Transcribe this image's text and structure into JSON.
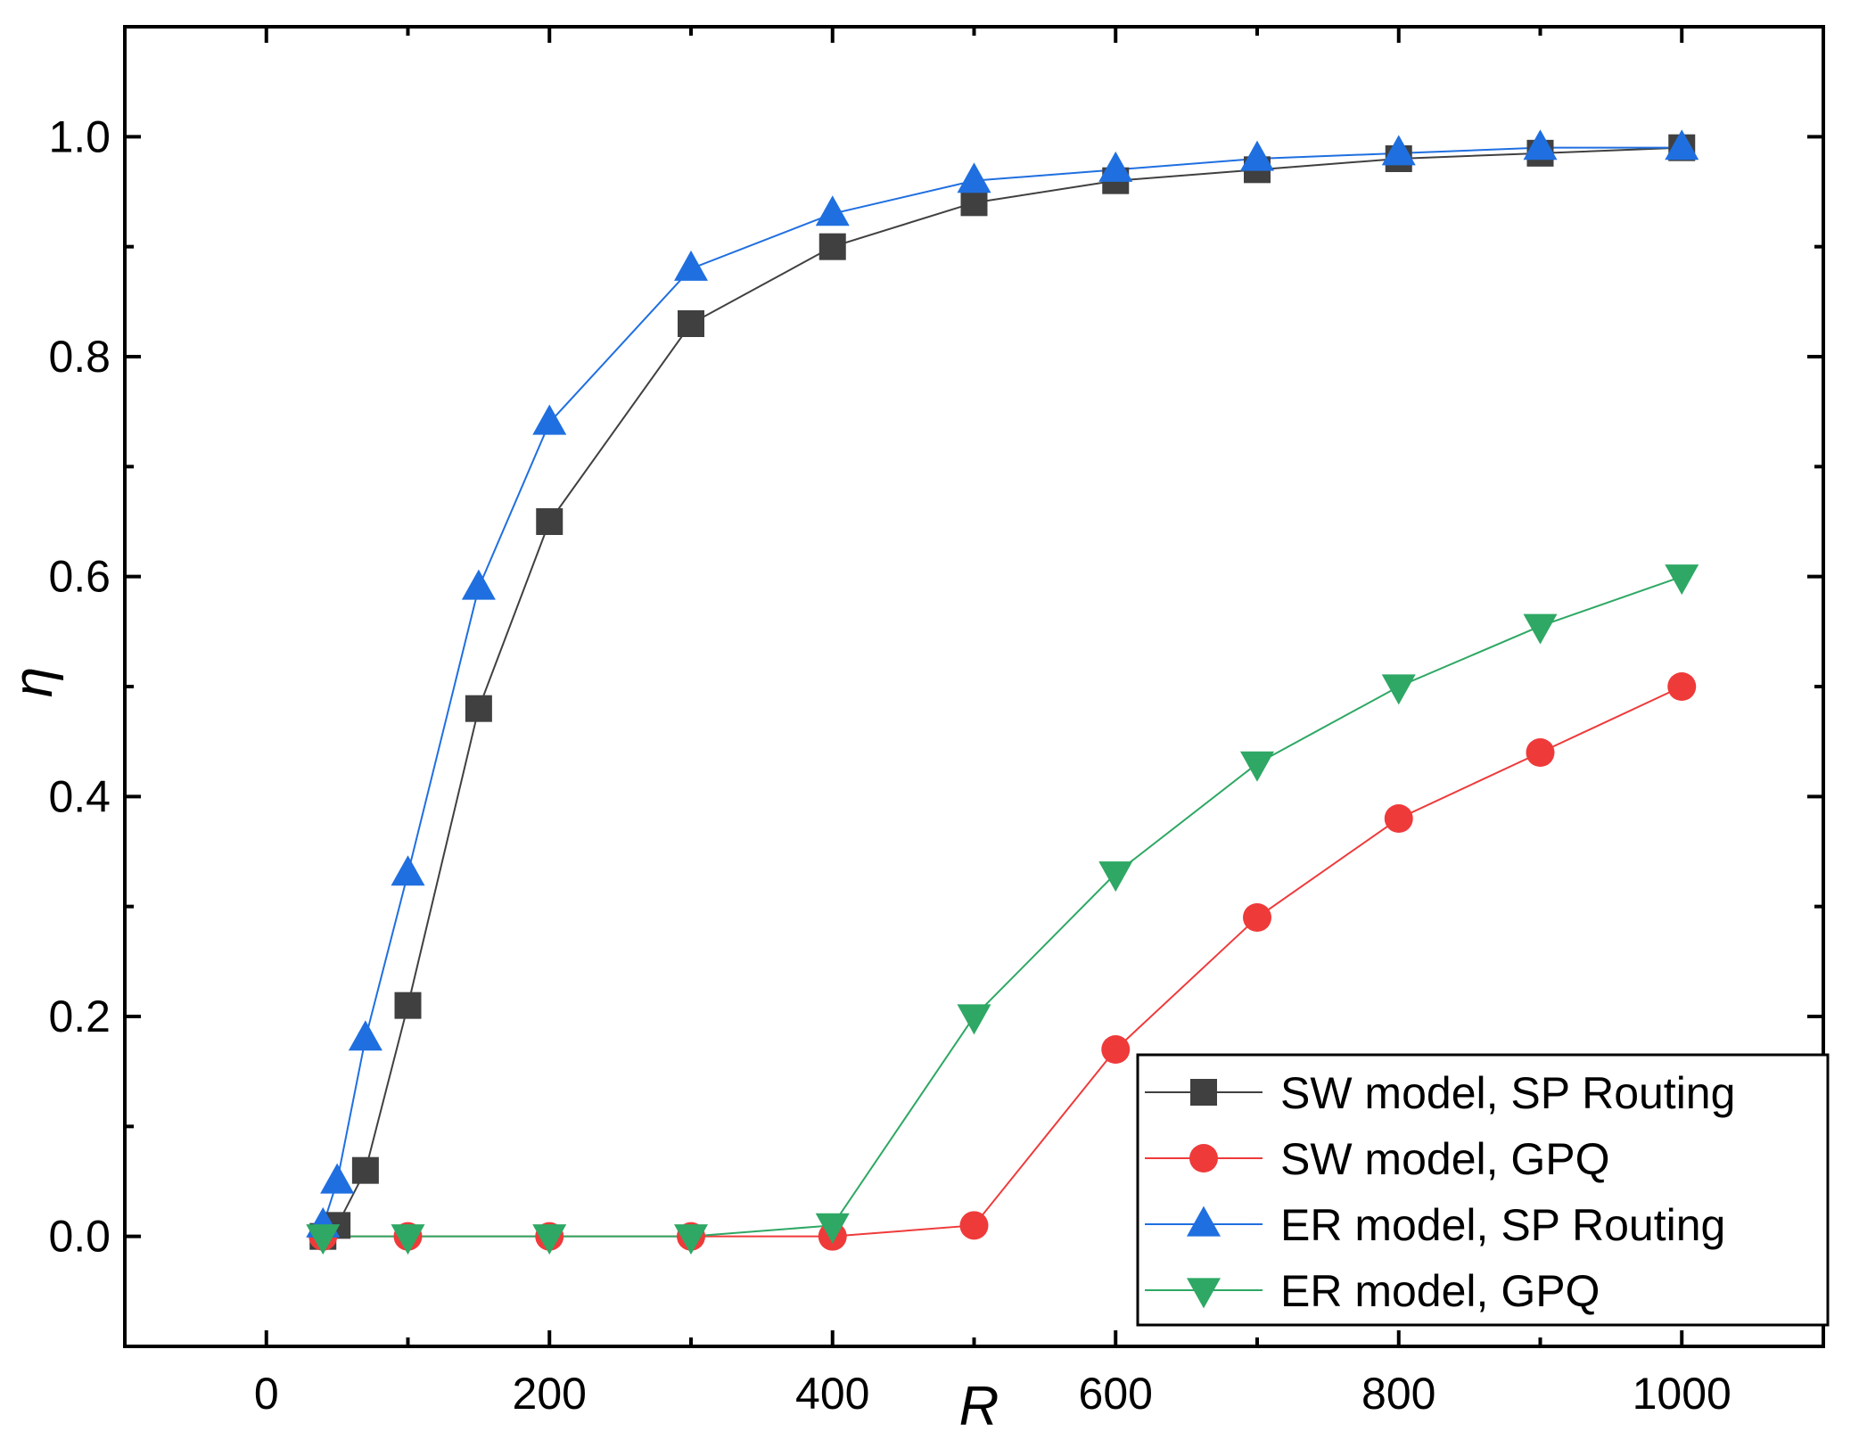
{
  "chart_data": {
    "type": "line",
    "title": "",
    "xlabel": "R",
    "ylabel": "η",
    "xlim": [
      -100,
      1100
    ],
    "ylim": [
      -0.1,
      1.1
    ],
    "xticks": [
      0,
      200,
      400,
      600,
      800,
      1000
    ],
    "yticks": [
      0.0,
      0.2,
      0.4,
      0.6,
      0.8,
      1.0
    ],
    "xtick_labels": [
      "0",
      "200",
      "400",
      "600",
      "800",
      "1000"
    ],
    "ytick_labels": [
      "0.0",
      "0.2",
      "0.4",
      "0.6",
      "0.8",
      "1.0"
    ],
    "grid": false,
    "legend_position": "bottom-right",
    "series": [
      {
        "name": "SW model, SP Routing",
        "color": "#404040",
        "marker": "square",
        "x": [
          40,
          50,
          70,
          100,
          150,
          200,
          300,
          400,
          500,
          600,
          700,
          800,
          900,
          1000
        ],
        "y": [
          0.0,
          0.01,
          0.06,
          0.21,
          0.48,
          0.65,
          0.83,
          0.9,
          0.94,
          0.96,
          0.97,
          0.98,
          0.985,
          0.99
        ]
      },
      {
        "name": "SW model, GPQ",
        "color": "#ef3a3a",
        "marker": "circle",
        "x": [
          40,
          100,
          200,
          300,
          400,
          500,
          600,
          700,
          800,
          900,
          1000
        ],
        "y": [
          0.0,
          0.0,
          0.0,
          0.0,
          0.0,
          0.01,
          0.17,
          0.29,
          0.38,
          0.44,
          0.5
        ]
      },
      {
        "name": "ER model, SP Routing",
        "color": "#1f6fe0",
        "marker": "triangle-up",
        "x": [
          40,
          50,
          70,
          100,
          150,
          200,
          300,
          400,
          500,
          600,
          700,
          800,
          900,
          1000
        ],
        "y": [
          0.01,
          0.05,
          0.18,
          0.33,
          0.59,
          0.74,
          0.88,
          0.93,
          0.96,
          0.97,
          0.98,
          0.985,
          0.99,
          0.99
        ]
      },
      {
        "name": "ER model, GPQ",
        "color": "#2ea864",
        "marker": "triangle-down",
        "x": [
          40,
          100,
          200,
          300,
          400,
          500,
          600,
          700,
          800,
          900,
          1000
        ],
        "y": [
          0.0,
          0.0,
          0.0,
          0.0,
          0.01,
          0.2,
          0.33,
          0.43,
          0.5,
          0.555,
          0.6
        ]
      }
    ]
  }
}
